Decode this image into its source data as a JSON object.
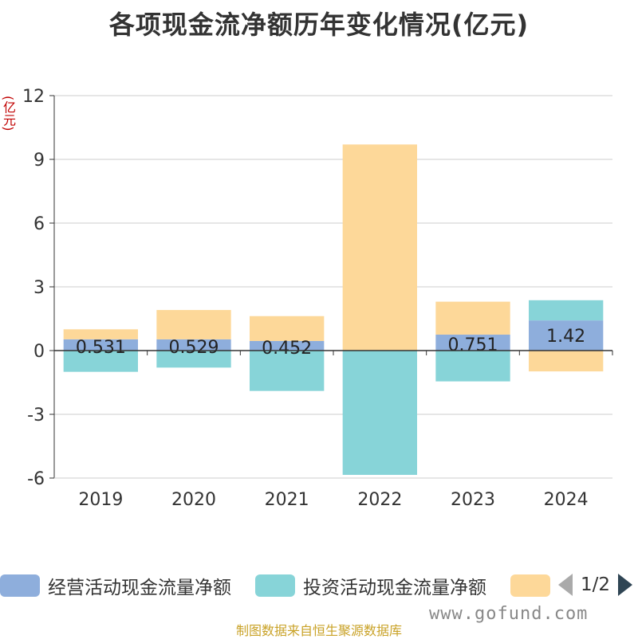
{
  "chart_data": {
    "type": "bar",
    "title": "各项现金流净额历年变化情况(亿元)",
    "ylabel": "(亿元)",
    "categories": [
      "2019",
      "2020",
      "2021",
      "2022",
      "2023",
      "2024"
    ],
    "ylim": [
      -6,
      12
    ],
    "yticks": [
      -6,
      -3,
      0,
      3,
      6,
      9,
      12
    ],
    "grid": true,
    "stacked": true,
    "series": [
      {
        "name": "经营活动现金流量净额",
        "color": "#8eaedc",
        "values": [
          0.531,
          0.529,
          0.452,
          0.0,
          0.751,
          1.42
        ],
        "labels": [
          "0.531",
          "0.529",
          "0.452",
          "",
          "0.751",
          "1.42"
        ]
      },
      {
        "name": "投资活动现金流量净额",
        "color": "#87d4d8",
        "values": [
          -1.0,
          -0.8,
          -1.9,
          -5.85,
          -1.45,
          0.95
        ]
      },
      {
        "name": "",
        "color": "#fdd899",
        "values": [
          0.47,
          1.38,
          1.17,
          9.7,
          1.55,
          -0.98
        ]
      }
    ],
    "legend_position": "bottom"
  },
  "legend": {
    "page": "1/2"
  },
  "footer": {
    "source": "制图数据来自恒生聚源数据库",
    "watermark": "www.gofund.com"
  }
}
